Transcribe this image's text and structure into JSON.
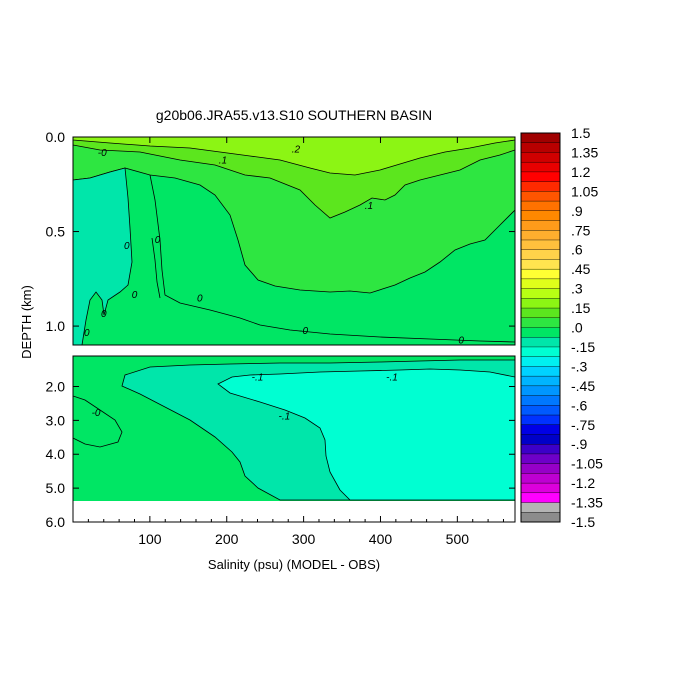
{
  "chart_data": {
    "type": "contour",
    "title": "g20b06.JRA55.v13.S10 SOUTHERN BASIN",
    "xlabel": "Salinity (psu) (MODEL - OBS)",
    "ylabel": "DEPTH (km)",
    "xlim": [
      0,
      575
    ],
    "x_ticks": [
      "100",
      "200",
      "300",
      "400",
      "500"
    ],
    "x_tick_values": [
      100,
      200,
      300,
      400,
      500
    ],
    "panels": [
      {
        "name": "upper",
        "ylim": [
          0.0,
          1.1
        ],
        "y_ticks": [
          "0.0",
          "0.5",
          "1.0"
        ],
        "y_tick_values": [
          0.0,
          0.5,
          1.0
        ]
      },
      {
        "name": "lower",
        "ylim": [
          1.1,
          6.0
        ],
        "y_ticks": [
          "2.0",
          "3.0",
          "4.0",
          "5.0",
          "6.0"
        ],
        "y_tick_values": [
          2.0,
          3.0,
          4.0,
          5.0,
          6.0
        ],
        "data_bottom_depth": 5.35
      }
    ],
    "contour_labels": [
      {
        "text": "-0",
        "x": 38,
        "y": 0.08,
        "panel": "upper"
      },
      {
        "text": ".2",
        "x": 290,
        "y": 0.06,
        "panel": "upper"
      },
      {
        "text": ".1",
        "x": 195,
        "y": 0.12,
        "panel": "upper"
      },
      {
        "text": ".1",
        "x": 385,
        "y": 0.36,
        "panel": "upper"
      },
      {
        "text": "0",
        "x": 70,
        "y": 0.57,
        "panel": "upper"
      },
      {
        "text": "0",
        "x": 110,
        "y": 0.54,
        "panel": "upper"
      },
      {
        "text": "0",
        "x": 80,
        "y": 0.83,
        "panel": "upper"
      },
      {
        "text": "0",
        "x": 165,
        "y": 0.85,
        "panel": "upper"
      },
      {
        "text": "0",
        "x": 40,
        "y": 0.93,
        "panel": "upper"
      },
      {
        "text": "0",
        "x": 18,
        "y": 1.03,
        "panel": "upper"
      },
      {
        "text": "-0",
        "x": 300,
        "y": 1.02,
        "panel": "upper"
      },
      {
        "text": "0",
        "x": 505,
        "y": 1.07,
        "panel": "upper"
      },
      {
        "text": "-.1",
        "x": 240,
        "y": 1.7,
        "panel": "lower"
      },
      {
        "text": "-.1",
        "x": 415,
        "y": 1.7,
        "panel": "lower"
      },
      {
        "text": "-.1",
        "x": 275,
        "y": 2.85,
        "panel": "lower"
      },
      {
        "text": "-0",
        "x": 30,
        "y": 2.75,
        "panel": "lower"
      }
    ],
    "colorbar": {
      "labels": [
        "1.5",
        "1.35",
        "1.2",
        "1.05",
        ".9",
        ".75",
        ".6",
        ".45",
        ".3",
        ".15",
        ".0",
        "-.15",
        "-.3",
        "-.45",
        "-.6",
        "-.75",
        "-.9",
        "-1.05",
        "-1.2",
        "-1.35",
        "-1.5"
      ],
      "values": [
        1.5,
        1.35,
        1.2,
        1.05,
        0.9,
        0.75,
        0.6,
        0.45,
        0.3,
        0.15,
        0.0,
        -0.15,
        -0.3,
        -0.45,
        -0.6,
        -0.75,
        -0.9,
        -1.05,
        -1.2,
        -1.35,
        -1.5
      ],
      "colors": [
        "#a00000",
        "#b80000",
        "#d00000",
        "#e80000",
        "#ff0000",
        "#ff2a00",
        "#ff5500",
        "#ff7200",
        "#ff8800",
        "#ff9b1a",
        "#ffae2e",
        "#ffc03d",
        "#ffd24a",
        "#ffe44f",
        "#ffff33",
        "#e0ff1a",
        "#b8ff14",
        "#8cf514",
        "#5ce61e",
        "#2ee641",
        "#00e664",
        "#00e6aa",
        "#00ffd2",
        "#00f0f0",
        "#00d2ff",
        "#00b4ff",
        "#0096ff",
        "#0078ff",
        "#005aff",
        "#0032ff",
        "#0000e6",
        "#0000c8",
        "#3c00c8",
        "#6e00c8",
        "#9600c8",
        "#be00d2",
        "#dc00dc",
        "#ff00ff",
        "#b4b4b4",
        "#8c8c8c"
      ]
    },
    "field_colors": {
      "positive_0_15": "#2ee641",
      "positive_15_30": "#5ce61e",
      "positive_30_45": "#8cf514",
      "near_zero": "#00e664",
      "negative_0_15": "#00e6aa",
      "negative_15_30": "#00ffd2",
      "missing": "#ffffff"
    }
  }
}
